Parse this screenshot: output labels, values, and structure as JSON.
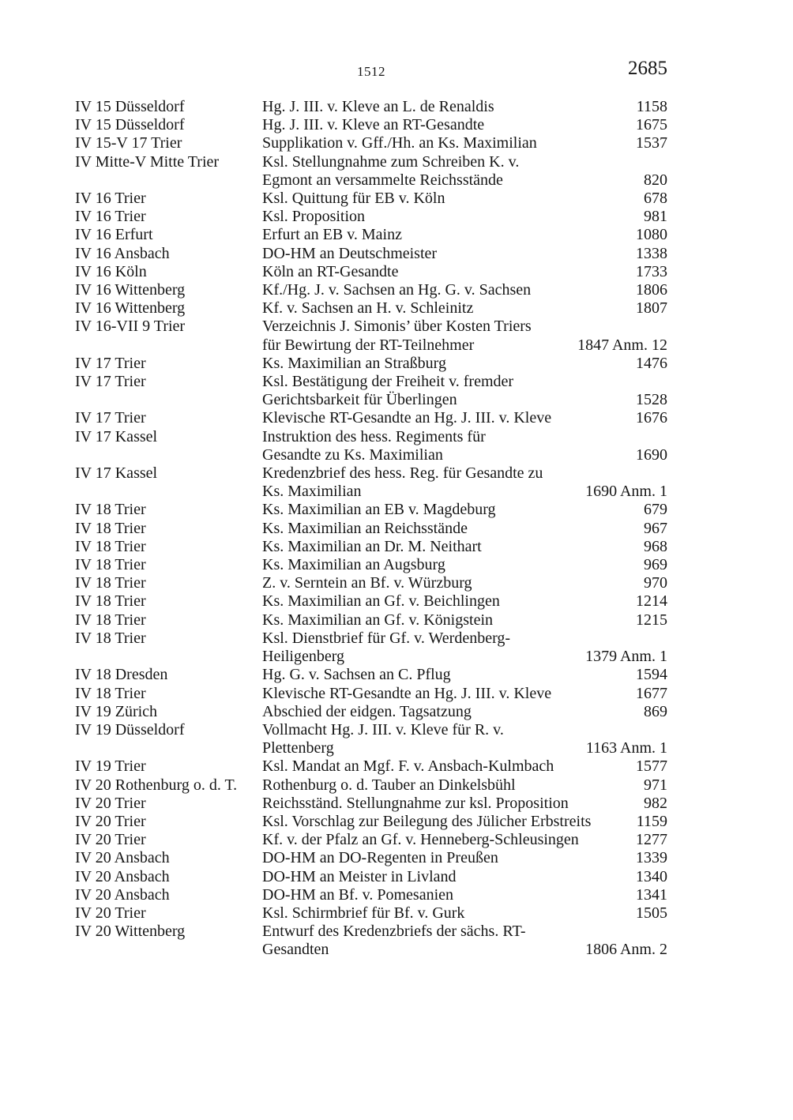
{
  "page": {
    "running_head": "1512",
    "page_number": "2685"
  },
  "table": {
    "rows": [
      {
        "c1": "IV 15 Düsseldorf",
        "c2": "Hg. J. III. v. Kleve an L. de Renaldis",
        "c3": "1158"
      },
      {
        "c1": "IV 15 Düsseldorf",
        "c2": "Hg. J. III. v. Kleve an RT-Gesandte",
        "c3": "1675"
      },
      {
        "c1": "IV 15-V 17 Trier",
        "c2": "Supplikation v. Gff./Hh. an Ks. Maximilian",
        "c3": "1537"
      },
      {
        "c1": "IV Mitte-V Mitte Trier",
        "c2": "Ksl. Stellungnahme zum Schreiben K. v.",
        "c3": ""
      },
      {
        "c1": "",
        "c2": "Egmont an versammelte Reichsstände",
        "c3": "820"
      },
      {
        "c1": "IV 16 Trier",
        "c2": "Ksl. Quittung für EB v. Köln",
        "c3": "678"
      },
      {
        "c1": "IV 16 Trier",
        "c2": "Ksl. Proposition",
        "c3": "981"
      },
      {
        "c1": "IV 16 Erfurt",
        "c2": "Erfurt an EB v. Mainz",
        "c3": "1080"
      },
      {
        "c1": "IV 16 Ansbach",
        "c2": "DO-HM an Deutschmeister",
        "c3": "1338"
      },
      {
        "c1": "IV 16 Köln",
        "c2": "Köln an RT-Gesandte",
        "c3": "1733"
      },
      {
        "c1": "IV 16 Wittenberg",
        "c2": "Kf./Hg. J. v. Sachsen an Hg. G. v. Sachsen",
        "c3": "1806"
      },
      {
        "c1": "IV 16 Wittenberg",
        "c2": "Kf. v. Sachsen an H. v. Schleinitz",
        "c3": "1807"
      },
      {
        "c1": "IV 16-VII 9 Trier",
        "c2": "Verzeichnis J. Simonis’ über Kosten Triers",
        "c3": ""
      },
      {
        "c1": "",
        "c2": "für Bewirtung der RT-Teilnehmer",
        "c3": "1847 Anm. 12"
      },
      {
        "c1": "IV 17 Trier",
        "c2": "Ks. Maximilian an Straßburg",
        "c3": "1476"
      },
      {
        "c1": "IV 17 Trier",
        "c2": "Ksl. Bestätigung der Freiheit v. fremder",
        "c3": ""
      },
      {
        "c1": "",
        "c2": "Gerichtsbarkeit für Überlingen",
        "c3": "1528"
      },
      {
        "c1": "IV 17 Trier",
        "c2": "Klevische RT-Gesandte an Hg. J. III. v. Kleve",
        "c3": "1676"
      },
      {
        "c1": "IV 17 Kassel",
        "c2": "Instruktion des hess. Regiments für",
        "c3": ""
      },
      {
        "c1": "",
        "c2": "Gesandte zu Ks. Maximilian",
        "c3": "1690"
      },
      {
        "c1": "IV 17 Kassel",
        "c2": "Kredenzbrief des hess. Reg. für Gesandte zu",
        "c3": ""
      },
      {
        "c1": "",
        "c2": "Ks. Maximilian",
        "c3": "1690 Anm. 1"
      },
      {
        "c1": "IV 18 Trier",
        "c2": "Ks. Maximilian an EB v. Magdeburg",
        "c3": "679"
      },
      {
        "c1": "IV 18 Trier",
        "c2": "Ks. Maximilian an Reichsstände",
        "c3": "967"
      },
      {
        "c1": "IV 18 Trier",
        "c2": "Ks. Maximilian an Dr. M. Neithart",
        "c3": "968"
      },
      {
        "c1": "IV 18 Trier",
        "c2": "Ks. Maximilian an Augsburg",
        "c3": "969"
      },
      {
        "c1": "IV 18 Trier",
        "c2": "Z. v. Serntein an Bf. v. Würzburg",
        "c3": "970"
      },
      {
        "c1": "IV 18 Trier",
        "c2": "Ks. Maximilian an Gf. v. Beichlingen",
        "c3": "1214"
      },
      {
        "c1": "IV 18 Trier",
        "c2": "Ks. Maximilian an Gf. v. Königstein",
        "c3": "1215"
      },
      {
        "c1": "IV 18 Trier",
        "c2": "Ksl. Dienstbrief für Gf. v. Werdenberg-",
        "c3": ""
      },
      {
        "c1": "",
        "c2": "Heiligenberg",
        "c3": "1379 Anm. 1"
      },
      {
        "c1": "IV 18 Dresden",
        "c2": "Hg. G. v. Sachsen an C. Pflug",
        "c3": "1594"
      },
      {
        "c1": "IV 18 Trier",
        "c2": "Klevische RT-Gesandte an Hg. J. III. v. Kleve",
        "c3": "1677"
      },
      {
        "c1": "IV 19 Zürich",
        "c2": "Abschied der eidgen. Tagsatzung",
        "c3": "869"
      },
      {
        "c1": "IV 19 Düsseldorf",
        "c2": "Vollmacht Hg. J. III. v. Kleve für R. v.",
        "c3": ""
      },
      {
        "c1": "",
        "c2": "Plettenberg",
        "c3": "1163 Anm. 1"
      },
      {
        "c1": "IV 19 Trier",
        "c2": "Ksl. Mandat an Mgf. F. v. Ansbach-Kulmbach",
        "c3": "1577"
      },
      {
        "c1": "IV 20 Rothenburg o. d. T.",
        "c2": "Rothenburg o. d. Tauber an Dinkelsbühl",
        "c3": "971"
      },
      {
        "c1": "IV 20 Trier",
        "c2": "Reichsständ. Stellungnahme zur ksl. Proposition",
        "c3": "982"
      },
      {
        "c1": "IV 20 Trier",
        "c2": "Ksl. Vorschlag zur Beilegung des Jülicher Erbstreits",
        "c3": "1159"
      },
      {
        "c1": "IV 20 Trier",
        "c2": "Kf. v. der Pfalz an Gf. v. Henneberg-Schleusingen",
        "c3": "1277"
      },
      {
        "c1": "IV 20 Ansbach",
        "c2": "DO-HM an DO-Regenten in Preußen",
        "c3": "1339"
      },
      {
        "c1": "IV 20 Ansbach",
        "c2": "DO-HM an Meister in Livland",
        "c3": "1340"
      },
      {
        "c1": "IV 20 Ansbach",
        "c2": "DO-HM an Bf. v. Pomesanien",
        "c3": "1341"
      },
      {
        "c1": "IV 20 Trier",
        "c2": "Ksl. Schirmbrief für Bf. v. Gurk",
        "c3": "1505"
      },
      {
        "c1": "IV 20 Wittenberg",
        "c2": "Entwurf des Kredenzbriefs der sächs. RT-",
        "c3": ""
      },
      {
        "c1": "",
        "c2": "Gesandten",
        "c3": "1806 Anm. 2"
      }
    ]
  }
}
